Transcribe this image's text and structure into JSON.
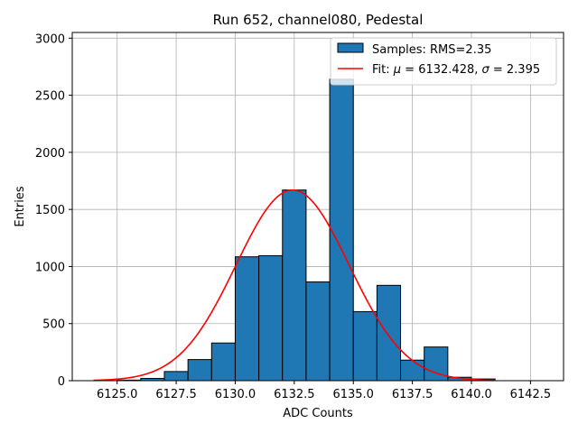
{
  "chart_data": {
    "type": "bar",
    "title": "Run 652, channel080, Pedestal",
    "xlabel": "ADC Counts",
    "ylabel": "Entries",
    "xlim": [
      6123.1,
      6143.9
    ],
    "ylim": [
      0,
      3050
    ],
    "grid": true,
    "bin_edges": [
      6125,
      6126,
      6127,
      6128,
      6129,
      6130,
      6131,
      6132,
      6133,
      6134,
      6135,
      6136,
      6137,
      6138,
      6139,
      6140,
      6141
    ],
    "counts": [
      5,
      20,
      80,
      185,
      330,
      1085,
      1095,
      1670,
      865,
      2640,
      605,
      835,
      180,
      295,
      30,
      15
    ],
    "xticks": [
      6125.0,
      6127.5,
      6130.0,
      6132.5,
      6135.0,
      6137.5,
      6140.0,
      6142.5
    ],
    "xtick_labels": [
      "6125.0",
      "6127.5",
      "6130.0",
      "6132.5",
      "6135.0",
      "6137.5",
      "6140.0",
      "6142.5"
    ],
    "yticks": [
      0,
      500,
      1000,
      1500,
      2000,
      2500,
      3000
    ],
    "ytick_labels": [
      "0",
      "500",
      "1000",
      "1500",
      "2000",
      "2500",
      "3000"
    ],
    "fit": {
      "mu": 6132.428,
      "sigma": 2.395,
      "amplitude": 1670,
      "x_range": [
        6124.0,
        6141.0
      ]
    },
    "legend": {
      "position": "top-right",
      "samples_label": "Samples: RMS=2.35",
      "fit_prefix": "Fit: ",
      "fit_mu_symbol": "μ",
      "fit_mid": " = 6132.428, ",
      "fit_sigma_symbol": "σ",
      "fit_suffix": " = 2.395"
    },
    "colors": {
      "bar_fill": "#1f77b4",
      "bar_edge": "#000000",
      "fit_line": "#ff0000",
      "grid": "#b0b0b0"
    }
  }
}
